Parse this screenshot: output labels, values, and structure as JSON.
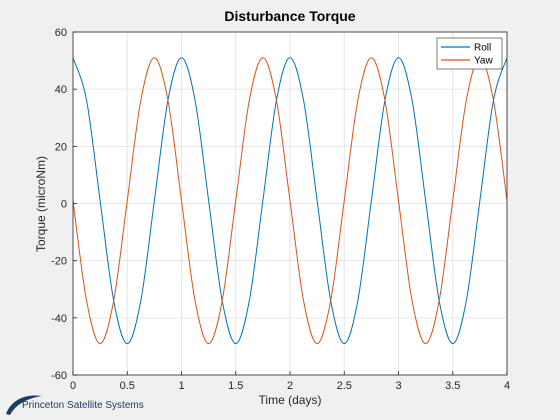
{
  "chart_data": {
    "type": "line",
    "title": "Disturbance Torque",
    "xlabel": "Time (days)",
    "ylabel": "Torque (microNm)",
    "xlim": [
      0,
      4
    ],
    "ylim": [
      -60,
      60
    ],
    "xticks": [
      0,
      0.5,
      1,
      1.5,
      2,
      2.5,
      3,
      3.5,
      4
    ],
    "xtick_labels": [
      "0",
      "0.5",
      "1",
      "1.5",
      "2",
      "2.5",
      "3",
      "3.5",
      "4"
    ],
    "yticks": [
      -60,
      -40,
      -20,
      0,
      20,
      40,
      60
    ],
    "ytick_labels": [
      "-60",
      "-40",
      "-20",
      "0",
      "20",
      "40",
      "60"
    ],
    "grid": true,
    "legend_position": "top-right",
    "series": [
      {
        "name": "Roll",
        "color": "#0072bd",
        "x": [
          0,
          0.125,
          0.25,
          0.375,
          0.5,
          0.625,
          0.75,
          0.875,
          1,
          1.125,
          1.25,
          1.375,
          1.5,
          1.625,
          1.75,
          1.875,
          2,
          2.125,
          2.25,
          2.375,
          2.5,
          2.625,
          2.75,
          2.875,
          3,
          3.125,
          3.25,
          3.375,
          3.5,
          3.625,
          3.75,
          3.875,
          4
        ],
        "y": [
          51,
          36.1,
          1,
          -34.0,
          -49,
          -34.0,
          1,
          36.1,
          51,
          36.1,
          1,
          -34.0,
          -49,
          -34.0,
          1,
          36.1,
          51,
          36.1,
          1,
          -34.0,
          -49,
          -34.0,
          1,
          36.1,
          51,
          36.1,
          1,
          -34.0,
          -49,
          -34.0,
          1,
          36.1,
          51
        ]
      },
      {
        "name": "Yaw",
        "color": "#d95319",
        "x": [
          0,
          0.125,
          0.25,
          0.375,
          0.5,
          0.625,
          0.75,
          0.875,
          1,
          1.125,
          1.25,
          1.375,
          1.5,
          1.625,
          1.75,
          1.875,
          2,
          2.125,
          2.25,
          2.375,
          2.5,
          2.625,
          2.75,
          2.875,
          3,
          3.125,
          3.25,
          3.375,
          3.5,
          3.625,
          3.75,
          3.875,
          4
        ],
        "y": [
          1,
          -34.0,
          -49,
          -34.0,
          1,
          36.1,
          51,
          36.1,
          1,
          -34.0,
          -49,
          -34.0,
          1,
          36.1,
          51,
          36.1,
          1,
          -34.0,
          -49,
          -34.0,
          1,
          36.1,
          51,
          36.1,
          1,
          -34.0,
          -49,
          -34.0,
          1,
          36.1,
          51,
          36.1,
          1
        ]
      }
    ]
  },
  "brand": {
    "text": "Princeton Satellite Systems",
    "color": "#1f3a63"
  }
}
